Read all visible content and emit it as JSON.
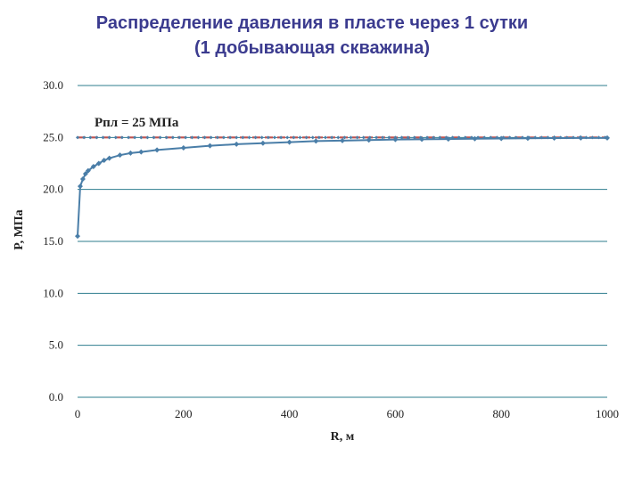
{
  "title": {
    "line1": "Распределение давления в пласте через 1 сутки",
    "line2": "(1 добывающая скважина)"
  },
  "colors": {
    "title": "#3b3b8f",
    "series": "#4a7ea8",
    "reference_line": "#c0504d",
    "grid": "#2e7d8e"
  },
  "chart_data": {
    "type": "line",
    "xlabel": "R, м",
    "ylabel": "P, МПа",
    "xlim": [
      0,
      1000
    ],
    "ylim": [
      0,
      30
    ],
    "xticks": [
      0,
      200,
      400,
      600,
      800,
      1000
    ],
    "yticks": [
      0.0,
      5.0,
      10.0,
      15.0,
      20.0,
      25.0,
      30.0
    ],
    "x_tick_labels": [
      "0",
      "200",
      "400",
      "600",
      "800",
      "1000"
    ],
    "y_tick_labels": [
      "0.0",
      "5.0",
      "10.0",
      "15.0",
      "20.0",
      "25.0",
      "30.0"
    ],
    "grid": "horizontal",
    "annotation": "Рпл = 25 МПа",
    "reference_line": {
      "y": 25,
      "style": "dashed"
    },
    "series": [
      {
        "marker": "diamond",
        "x": [
          0,
          5,
          10,
          15,
          20,
          30,
          40,
          50,
          60,
          80,
          100,
          120,
          150,
          200,
          250,
          300,
          350,
          400,
          450,
          500,
          550,
          600,
          650,
          700,
          750,
          800,
          850,
          900,
          950,
          1000
        ],
        "y": [
          15.5,
          20.3,
          21.0,
          21.5,
          21.8,
          22.2,
          22.5,
          22.8,
          23.0,
          23.3,
          23.5,
          23.6,
          23.8,
          24.0,
          24.2,
          24.35,
          24.45,
          24.55,
          24.65,
          24.7,
          24.75,
          24.8,
          24.82,
          24.85,
          24.88,
          24.9,
          24.92,
          24.94,
          24.95,
          24.95
        ]
      }
    ]
  }
}
